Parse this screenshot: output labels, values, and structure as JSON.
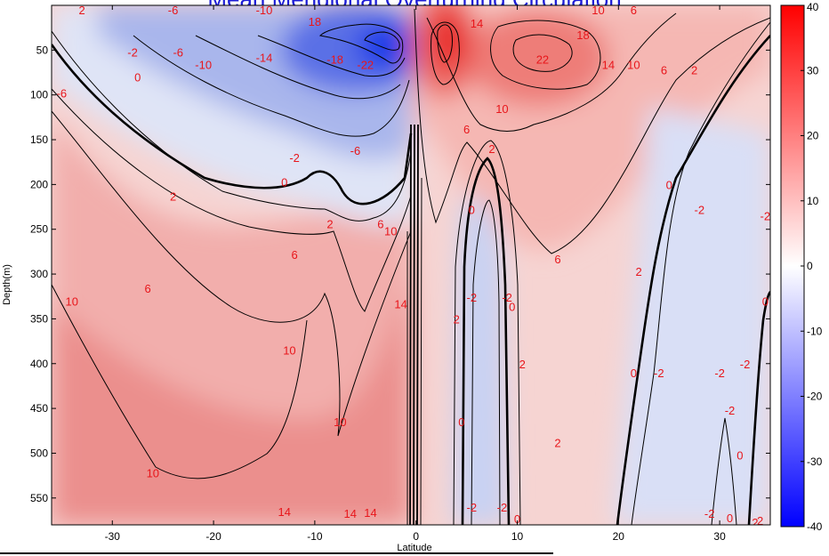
{
  "chart_data": {
    "type": "heatmap",
    "title": "Mean Meridional Overturning Circulation",
    "xlabel": "Latitude",
    "ylabel": "Depth(m)",
    "xlim": [
      -36,
      35
    ],
    "ylim": [
      580,
      0
    ],
    "x_ticks": [
      -30,
      -20,
      -10,
      0,
      10,
      20,
      30
    ],
    "y_ticks": [
      50,
      100,
      150,
      200,
      250,
      300,
      350,
      400,
      450,
      500,
      550
    ],
    "colorbar": {
      "min": -40,
      "max": 40,
      "ticks": [
        40,
        30,
        20,
        10,
        0,
        -10,
        -20,
        -30,
        -40
      ],
      "high_color": "#ff0000",
      "mid_color": "#ffffff",
      "low_color": "#0000ff"
    },
    "contour_levels": [
      -22,
      -18,
      -14,
      -10,
      -6,
      -2,
      0,
      2,
      6,
      10,
      14,
      18,
      22
    ],
    "contour_labels": [
      {
        "text": "2",
        "lat": -33,
        "depth": 5
      },
      {
        "text": "-6",
        "lat": -24,
        "depth": 5
      },
      {
        "text": "-10",
        "lat": -15,
        "depth": 5
      },
      {
        "text": "18",
        "lat": -10,
        "depth": 18
      },
      {
        "text": "10",
        "lat": 18,
        "depth": 5
      },
      {
        "text": "6",
        "lat": 21.5,
        "depth": 5
      },
      {
        "text": "14",
        "lat": 6,
        "depth": 20
      },
      {
        "text": "18",
        "lat": 16.5,
        "depth": 33
      },
      {
        "text": "-2",
        "lat": -28,
        "depth": 52
      },
      {
        "text": "-6",
        "lat": -23.5,
        "depth": 52
      },
      {
        "text": "-10",
        "lat": -21,
        "depth": 66
      },
      {
        "text": "-14",
        "lat": -15,
        "depth": 58
      },
      {
        "text": "-18",
        "lat": -8,
        "depth": 60
      },
      {
        "text": "-22",
        "lat": -5,
        "depth": 66
      },
      {
        "text": "22",
        "lat": 12.5,
        "depth": 60
      },
      {
        "text": "14",
        "lat": 19,
        "depth": 66
      },
      {
        "text": "10",
        "lat": 21.5,
        "depth": 66
      },
      {
        "text": "6",
        "lat": 24.5,
        "depth": 72
      },
      {
        "text": "2",
        "lat": 27.5,
        "depth": 72
      },
      {
        "text": "0",
        "lat": -27.5,
        "depth": 80
      },
      {
        "text": "-6",
        "lat": -35,
        "depth": 98
      },
      {
        "text": "10",
        "lat": 8.5,
        "depth": 115
      },
      {
        "text": "6",
        "lat": 5,
        "depth": 138
      },
      {
        "text": "-2",
        "lat": -12,
        "depth": 170
      },
      {
        "text": "-6",
        "lat": -6,
        "depth": 162
      },
      {
        "text": "2",
        "lat": 7.5,
        "depth": 160
      },
      {
        "text": "0",
        "lat": -13,
        "depth": 197
      },
      {
        "text": "2",
        "lat": -24,
        "depth": 213
      },
      {
        "text": "0",
        "lat": 25,
        "depth": 200
      },
      {
        "text": "-2",
        "lat": 28,
        "depth": 228
      },
      {
        "text": "-2",
        "lat": 34.5,
        "depth": 235
      },
      {
        "text": "0",
        "lat": 5.5,
        "depth": 228
      },
      {
        "text": "2",
        "lat": -8.5,
        "depth": 244
      },
      {
        "text": "6",
        "lat": -3.5,
        "depth": 244
      },
      {
        "text": "10",
        "lat": -2.5,
        "depth": 252
      },
      {
        "text": "6",
        "lat": -12,
        "depth": 278
      },
      {
        "text": "6",
        "lat": 14,
        "depth": 283
      },
      {
        "text": "2",
        "lat": 22,
        "depth": 297
      },
      {
        "text": "6",
        "lat": -26.5,
        "depth": 316
      },
      {
        "text": "10",
        "lat": -34,
        "depth": 330
      },
      {
        "text": "14",
        "lat": -1.5,
        "depth": 333
      },
      {
        "text": "-2",
        "lat": 5.5,
        "depth": 326
      },
      {
        "text": "-2",
        "lat": 9,
        "depth": 326
      },
      {
        "text": "0",
        "lat": 9.5,
        "depth": 336
      },
      {
        "text": "0",
        "lat": 34.5,
        "depth": 330
      },
      {
        "text": "2",
        "lat": 4,
        "depth": 350
      },
      {
        "text": "10",
        "lat": -12.5,
        "depth": 385
      },
      {
        "text": "2",
        "lat": 10.5,
        "depth": 400
      },
      {
        "text": "0",
        "lat": 21.5,
        "depth": 410
      },
      {
        "text": "-2",
        "lat": 24,
        "depth": 410
      },
      {
        "text": "-2",
        "lat": 30,
        "depth": 410
      },
      {
        "text": "-2",
        "lat": 32.5,
        "depth": 400
      },
      {
        "text": "-2",
        "lat": 31,
        "depth": 452
      },
      {
        "text": "10",
        "lat": -7.5,
        "depth": 465
      },
      {
        "text": "0",
        "lat": 4.5,
        "depth": 465
      },
      {
        "text": "2",
        "lat": 14,
        "depth": 488
      },
      {
        "text": "0",
        "lat": 32,
        "depth": 502
      },
      {
        "text": "10",
        "lat": -26,
        "depth": 522
      },
      {
        "text": "14",
        "lat": -13,
        "depth": 565
      },
      {
        "text": "14",
        "lat": -6.5,
        "depth": 567
      },
      {
        "text": "14",
        "lat": -4.5,
        "depth": 566
      },
      {
        "text": "-2",
        "lat": 5.5,
        "depth": 560
      },
      {
        "text": "-2",
        "lat": 8.5,
        "depth": 560
      },
      {
        "text": "0",
        "lat": 10,
        "depth": 573
      },
      {
        "text": "-2",
        "lat": 29,
        "depth": 567
      },
      {
        "text": "0",
        "lat": 31,
        "depth": 572
      },
      {
        "text": "2",
        "lat": 34,
        "depth": 575
      },
      {
        "text": "2",
        "lat": 33.5,
        "depth": 577
      }
    ]
  }
}
